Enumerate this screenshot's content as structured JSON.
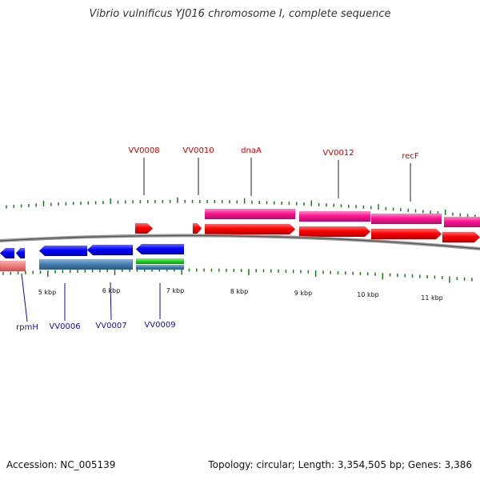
{
  "title": "Vibrio vulnificus YJ016 chromosome I, complete sequence",
  "footer": {
    "accession": "Accession: NC_005139",
    "summary": "Topology: circular; Length: 3,354,505 bp; Genes: 3,386"
  },
  "colors": {
    "forward_cds": "#ff0000",
    "forward_gene": "#ff1493",
    "reverse_cds": "#0000ff",
    "reverse_gene": "#4682b4",
    "rna": "#22cc22",
    "tick": "#1a7a1a",
    "label_forward": "#cc0000",
    "label_reverse": "#1010aa",
    "backbone": "#888888"
  },
  "scale_labels": [
    "5 kbp",
    "6 kbp",
    "7 kbp",
    "8 kbp",
    "9 kbp",
    "10 kbp",
    "11 kbp"
  ],
  "forward_labels": [
    "VV0008",
    "VV0010",
    "dnaA",
    "VV0012",
    "recF"
  ],
  "reverse_labels": [
    "rpmH",
    "VV0006",
    "VV0007",
    "VV0009"
  ]
}
